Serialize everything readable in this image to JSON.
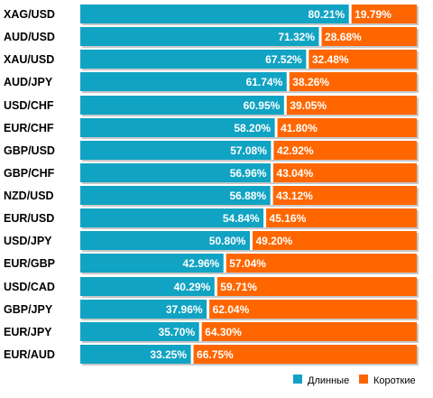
{
  "colors": {
    "long": "#11a3c3",
    "short": "#ff6600",
    "shadow": "#c8c8c8",
    "separator": "#ffffff"
  },
  "chart_data": {
    "type": "bar",
    "orientation": "horizontal",
    "stacked": true,
    "categories": [
      "XAG/USD",
      "AUD/USD",
      "XAU/USD",
      "AUD/JPY",
      "USD/CHF",
      "EUR/CHF",
      "GBP/USD",
      "GBP/CHF",
      "NZD/USD",
      "EUR/USD",
      "USD/JPY",
      "EUR/GBP",
      "USD/CAD",
      "GBP/JPY",
      "EUR/JPY",
      "EUR/AUD"
    ],
    "series": [
      {
        "name": "Длинные",
        "color": "#11a3c3",
        "values": [
          80.21,
          71.32,
          67.52,
          61.74,
          60.95,
          58.2,
          57.08,
          56.96,
          56.88,
          54.84,
          50.8,
          42.96,
          40.29,
          37.96,
          35.7,
          33.25
        ],
        "labels": [
          "80.21%",
          "71.32%",
          "67.52%",
          "61.74%",
          "60.95%",
          "58.20%",
          "57.08%",
          "56.96%",
          "56.88%",
          "54.84%",
          "50.80%",
          "42.96%",
          "40.29%",
          "37.96%",
          "35.70%",
          "33.25%"
        ]
      },
      {
        "name": "Короткие",
        "color": "#ff6600",
        "values": [
          19.79,
          28.68,
          32.48,
          38.26,
          39.05,
          41.8,
          42.92,
          43.04,
          43.12,
          45.16,
          49.2,
          57.04,
          59.71,
          62.04,
          64.3,
          66.75
        ],
        "labels": [
          "19.79%",
          "28.68%",
          "32.48%",
          "38.26%",
          "39.05%",
          "41.80%",
          "42.92%",
          "43.04%",
          "43.12%",
          "45.16%",
          "49.20%",
          "57.04%",
          "59.71%",
          "62.04%",
          "64.30%",
          "66.75%"
        ]
      }
    ],
    "xlim": [
      0,
      100
    ],
    "grid": false,
    "legend_position": "bottom-right"
  }
}
